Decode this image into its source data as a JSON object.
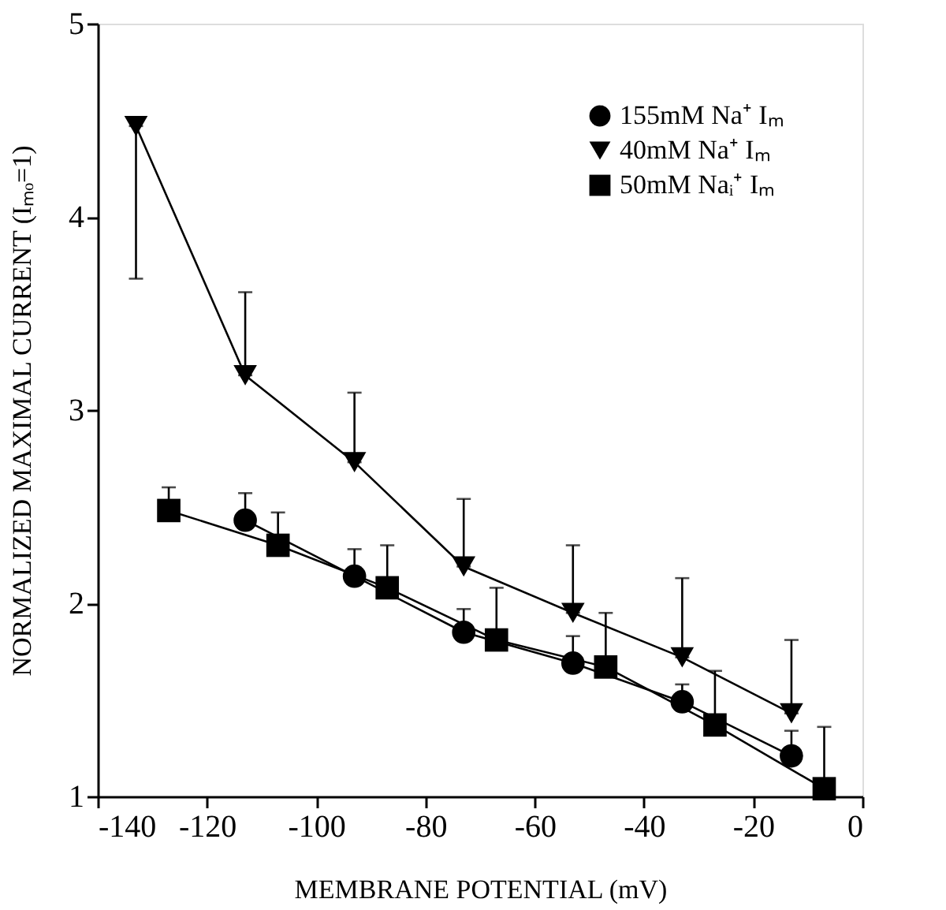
{
  "chart_data": {
    "type": "line",
    "xlabel": "MEMBRANE POTENTIAL (mV)",
    "ylabel": "NORMALIZED MAXIMAL CURRENT (Iₘₒ=1)",
    "xlim": [
      -140,
      0
    ],
    "xticks": [
      -140,
      -120,
      -100,
      -80,
      -60,
      -40,
      -20,
      0
    ],
    "ylim": [
      1,
      5
    ],
    "yticks": [
      1,
      2,
      3,
      4,
      5
    ],
    "grid": false,
    "legend": "top right",
    "line_style": "solid",
    "series": [
      {
        "name": "155mM Na⁺ Iₘ",
        "color": "#000000",
        "marker": "circle",
        "x": [
          -113,
          -93,
          -73,
          -53,
          -33,
          -13
        ],
        "values": [
          2.43,
          2.14,
          1.85,
          1.69,
          1.49,
          1.21
        ],
        "errors": [
          [
            2.43,
            2.57
          ],
          [
            2.14,
            2.28
          ],
          [
            1.85,
            1.97
          ],
          [
            1.69,
            1.83
          ],
          [
            1.49,
            1.58
          ],
          [
            1.21,
            1.34
          ]
        ]
      },
      {
        "name": "40mM Na⁺ Iₘ",
        "color": "#000000",
        "marker": "triangle",
        "x": [
          -133,
          -113,
          -93,
          -73,
          -53,
          -33,
          -13
        ],
        "values": [
          4.47,
          3.18,
          2.73,
          2.19,
          1.95,
          1.72,
          1.43
        ],
        "errors": [
          [
            3.68,
            4.47
          ],
          [
            3.18,
            3.61
          ],
          [
            2.73,
            3.09
          ],
          [
            2.19,
            2.54
          ],
          [
            1.95,
            2.3
          ],
          [
            1.72,
            2.13
          ],
          [
            1.43,
            1.81
          ]
        ]
      },
      {
        "name": "50mM Naᵢ⁺ Iₘ",
        "color": "#000000",
        "marker": "square",
        "x": [
          -127,
          -107,
          -87,
          -67,
          -47,
          -27,
          -7
        ],
        "values": [
          2.48,
          2.3,
          2.08,
          1.81,
          1.67,
          1.37,
          1.04
        ],
        "errors": [
          [
            2.48,
            2.6
          ],
          [
            2.3,
            2.47
          ],
          [
            2.08,
            2.3
          ],
          [
            1.81,
            2.08
          ],
          [
            1.67,
            1.95
          ],
          [
            1.37,
            1.65
          ],
          [
            1.04,
            1.36
          ]
        ]
      }
    ]
  }
}
